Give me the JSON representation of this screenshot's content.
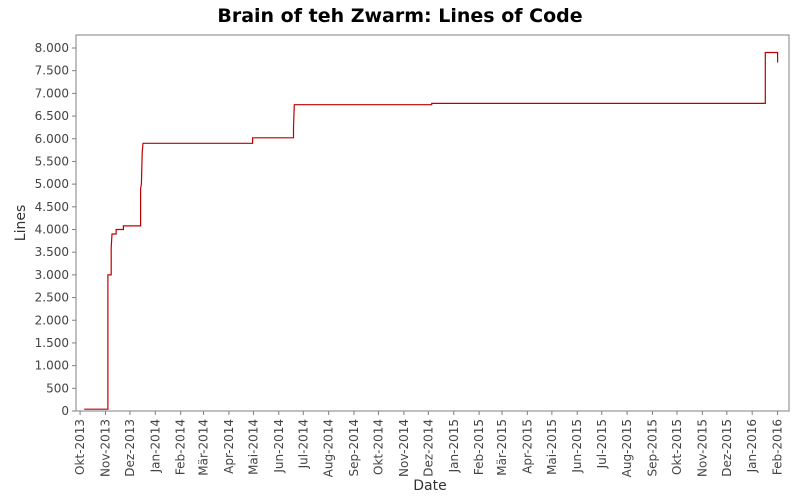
{
  "chart_data": {
    "type": "line",
    "title": "Brain of teh Zwarm: Lines of Code",
    "xlabel": "Date",
    "ylabel": "Lines",
    "ylim": [
      0,
      8200
    ],
    "xlim": [
      "2013-09-26",
      "2016-02-15"
    ],
    "y_ticks": [
      0,
      500,
      1000,
      1500,
      2000,
      2500,
      3000,
      3500,
      4000,
      4500,
      5000,
      5500,
      6000,
      6500,
      7000,
      7500,
      8000
    ],
    "y_tick_labels": [
      "0",
      "500",
      "1.000",
      "1.500",
      "2.000",
      "2.500",
      "3.000",
      "3.500",
      "4.000",
      "4.500",
      "5.000",
      "5.500",
      "6.000",
      "6.500",
      "7.000",
      "7.500",
      "8.000"
    ],
    "x_ticks": [
      {
        "label": "Okt-2013",
        "date": "2013-10-01"
      },
      {
        "label": "Nov-2013",
        "date": "2013-11-01"
      },
      {
        "label": "Dez-2013",
        "date": "2013-12-01"
      },
      {
        "label": "Jan-2014",
        "date": "2014-01-01"
      },
      {
        "label": "Feb-2014",
        "date": "2014-02-01"
      },
      {
        "label": "Mär-2014",
        "date": "2014-03-01"
      },
      {
        "label": "Apr-2014",
        "date": "2014-04-01"
      },
      {
        "label": "Mai-2014",
        "date": "2014-05-01"
      },
      {
        "label": "Jun-2014",
        "date": "2014-06-01"
      },
      {
        "label": "Jul-2014",
        "date": "2014-07-01"
      },
      {
        "label": "Aug-2014",
        "date": "2014-08-01"
      },
      {
        "label": "Sep-2014",
        "date": "2014-09-01"
      },
      {
        "label": "Okt-2014",
        "date": "2014-10-01"
      },
      {
        "label": "Nov-2014",
        "date": "2014-11-01"
      },
      {
        "label": "Dez-2014",
        "date": "2014-12-01"
      },
      {
        "label": "Jan-2015",
        "date": "2015-01-01"
      },
      {
        "label": "Feb-2015",
        "date": "2015-02-01"
      },
      {
        "label": "Mär-2015",
        "date": "2015-03-01"
      },
      {
        "label": "Apr-2015",
        "date": "2015-04-01"
      },
      {
        "label": "Mai-2015",
        "date": "2015-05-01"
      },
      {
        "label": "Jun-2015",
        "date": "2015-06-01"
      },
      {
        "label": "Jul-2015",
        "date": "2015-07-01"
      },
      {
        "label": "Aug-2015",
        "date": "2015-08-01"
      },
      {
        "label": "Sep-2015",
        "date": "2015-09-01"
      },
      {
        "label": "Okt-2015",
        "date": "2015-10-01"
      },
      {
        "label": "Nov-2015",
        "date": "2015-11-01"
      },
      {
        "label": "Dez-2015",
        "date": "2015-12-01"
      },
      {
        "label": "Jan-2016",
        "date": "2016-01-01"
      },
      {
        "label": "Feb-2016",
        "date": "2016-02-01"
      }
    ],
    "grid": false,
    "legend": "none",
    "line_color": "#c00000",
    "step": true,
    "series": [
      {
        "points": [
          {
            "date": "2013-10-06",
            "value": 40
          },
          {
            "date": "2013-11-04",
            "value": 40
          },
          {
            "date": "2013-11-04",
            "value": 3000
          },
          {
            "date": "2013-11-08",
            "value": 3000
          },
          {
            "date": "2013-11-08",
            "value": 3600
          },
          {
            "date": "2013-11-09",
            "value": 3900
          },
          {
            "date": "2013-11-14",
            "value": 3900
          },
          {
            "date": "2013-11-14",
            "value": 4000
          },
          {
            "date": "2013-11-23",
            "value": 4000
          },
          {
            "date": "2013-11-23",
            "value": 4080
          },
          {
            "date": "2013-12-14",
            "value": 4080
          },
          {
            "date": "2013-12-14",
            "value": 4900
          },
          {
            "date": "2013-12-15",
            "value": 5000
          },
          {
            "date": "2013-12-16",
            "value": 5700
          },
          {
            "date": "2013-12-17",
            "value": 5900
          },
          {
            "date": "2014-04-30",
            "value": 5900
          },
          {
            "date": "2014-04-30",
            "value": 6020
          },
          {
            "date": "2014-06-19",
            "value": 6020
          },
          {
            "date": "2014-06-19",
            "value": 6250
          },
          {
            "date": "2014-06-20",
            "value": 6750
          },
          {
            "date": "2014-12-05",
            "value": 6750
          },
          {
            "date": "2014-12-05",
            "value": 6780
          },
          {
            "date": "2016-01-17",
            "value": 6780
          },
          {
            "date": "2016-01-17",
            "value": 7900
          },
          {
            "date": "2016-02-01",
            "value": 7900
          },
          {
            "date": "2016-02-01",
            "value": 7680
          }
        ]
      }
    ]
  }
}
